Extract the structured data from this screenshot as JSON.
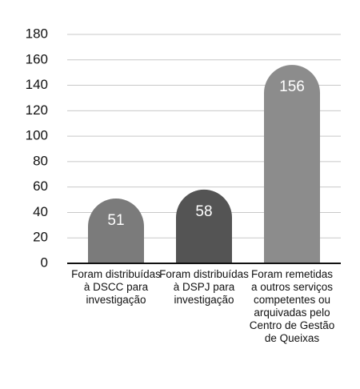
{
  "chart_data": {
    "type": "bar",
    "categories": [
      "Foram distribuídas à DSCC para investigação",
      "Foram distribuídas à DSPJ para investigação",
      "Foram remetidas a outros serviços competentes ou arquivadas pelo Centro de Gestão de Queixas"
    ],
    "values": [
      51,
      58,
      156
    ],
    "colors": [
      "#7b7b7b",
      "#545454",
      "#8c8c8c"
    ],
    "ylim": [
      0,
      180
    ],
    "yticks": [
      0,
      20,
      40,
      60,
      80,
      100,
      120,
      140,
      160,
      180
    ],
    "grid": true
  }
}
